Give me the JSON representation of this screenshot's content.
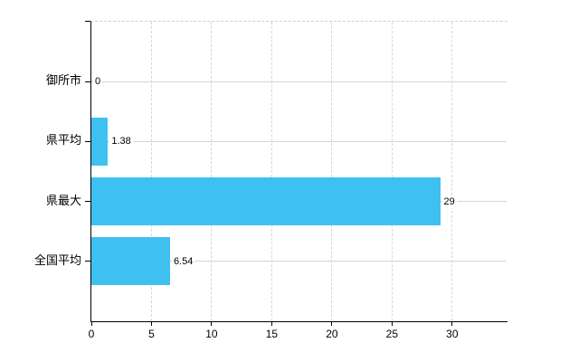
{
  "chart_data": {
    "type": "bar",
    "orientation": "horizontal",
    "title": "",
    "xlabel": "",
    "ylabel": "",
    "categories": [
      "御所市",
      "県平均",
      "県最大",
      "全国平均"
    ],
    "values": [
      0,
      1.38,
      29,
      6.54
    ],
    "value_labels": [
      "0",
      "1.38",
      "29",
      "6.54"
    ],
    "x_ticks": [
      0,
      5,
      10,
      15,
      20,
      25,
      30
    ],
    "xlim": [
      0,
      34.6
    ],
    "grid": true,
    "legend": false,
    "bar_color": "#3EC1F0",
    "axis_color": "#000000",
    "hgrid_color": "#d2d6d2",
    "vgrid_color": "#d8d3d8",
    "top_border_color": "#d2cdd2",
    "text_color": "#000000",
    "background_color": "#ffffff"
  }
}
